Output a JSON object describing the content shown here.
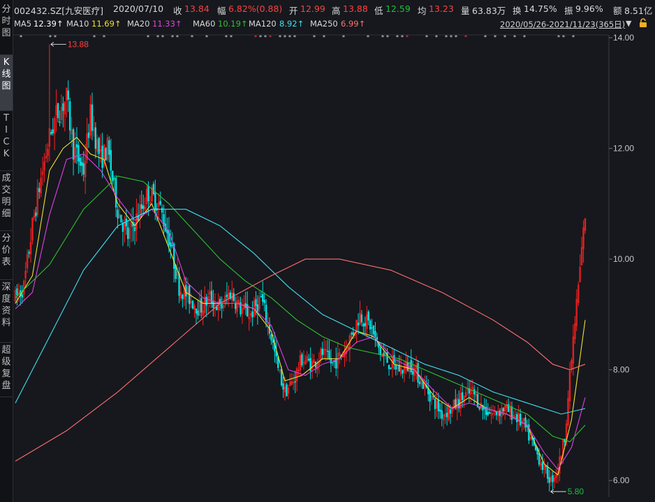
{
  "tabs": [
    {
      "label": "分时图",
      "active": false
    },
    {
      "label": "K线图",
      "active": true
    },
    {
      "label": "TICK",
      "active": false
    },
    {
      "label": "成交明细",
      "active": false
    },
    {
      "label": "分价表",
      "active": false
    },
    {
      "label": "深度资料",
      "active": false
    },
    {
      "label": "超级复盘",
      "active": false
    }
  ],
  "header": {
    "symbol": "002432.SZ[九安医疗]",
    "date": "2020/07/10",
    "close_label": "收",
    "close": "13.84",
    "change_label": "幅",
    "change": "6.82%(0.88)",
    "open_label": "开",
    "open": "12.99",
    "high_label": "高",
    "high": "13.88",
    "low_label": "低",
    "low": "12.59",
    "avg_label": "均",
    "avg": "13.23",
    "volume_label": "量",
    "volume": "63.83万",
    "turnover_label": "换",
    "turnover": "14.75%",
    "amplitude_label": "振",
    "amplitude": "9.96%",
    "amount_label": "额",
    "amount": "8.51亿"
  },
  "ma_bar": [
    {
      "name": "MA5",
      "value": "12.39↑",
      "color": "#ffffff"
    },
    {
      "name": "MA10",
      "value": "11.69↑",
      "color": "#f0e030"
    },
    {
      "name": "MA20",
      "value": "11.33↑",
      "color": "#e040e0"
    },
    {
      "name": "MA60",
      "value": "10.19↑",
      "color": "#30c030"
    },
    {
      "name": "MA120",
      "value": "8.92↑",
      "color": "#40e0f0"
    },
    {
      "name": "MA250",
      "value": "6.99↑",
      "color": "#ff7070"
    }
  ],
  "date_range": "2020/05/26-2021/11/23(365日)",
  "icons": {
    "dropdown": "chevron-down-icon",
    "lock": "lock-icon"
  },
  "colors": {
    "up": "#ff2020",
    "down": "#00e0e0",
    "bg": "#16181d",
    "grid": "#3a3d44"
  },
  "chart_data": {
    "type": "candlestick",
    "title": "",
    "xlabel": "",
    "ylabel": "",
    "ylim": [
      5.7,
      14.05
    ],
    "yticks": [
      6.0,
      8.0,
      10.0,
      12.0,
      14.0
    ],
    "ytick_labels": [
      "6.00",
      "8.00",
      "10.00",
      "12.00",
      "14.00"
    ],
    "period_days": 365,
    "anchors": [
      [
        0,
        9.3
      ],
      [
        5,
        9.5
      ],
      [
        10,
        10.6
      ],
      [
        14,
        11.3
      ],
      [
        20,
        12.2
      ],
      [
        24,
        12.6
      ],
      [
        30,
        12.9
      ],
      [
        34,
        12.0
      ],
      [
        40,
        11.6
      ],
      [
        44,
        12.6
      ],
      [
        50,
        11.8
      ],
      [
        54,
        12.0
      ],
      [
        60,
        10.9
      ],
      [
        66,
        10.4
      ],
      [
        72,
        10.8
      ],
      [
        78,
        11.2
      ],
      [
        84,
        11.0
      ],
      [
        90,
        10.4
      ],
      [
        96,
        9.5
      ],
      [
        102,
        9.3
      ],
      [
        108,
        9.1
      ],
      [
        114,
        9.3
      ],
      [
        120,
        9.1
      ],
      [
        126,
        9.4
      ],
      [
        132,
        9.1
      ],
      [
        138,
        9.0
      ],
      [
        144,
        9.3
      ],
      [
        150,
        8.6
      ],
      [
        154,
        8.0
      ],
      [
        158,
        7.6
      ],
      [
        163,
        7.8
      ],
      [
        168,
        8.2
      ],
      [
        174,
        8.1
      ],
      [
        180,
        8.3
      ],
      [
        186,
        8.1
      ],
      [
        192,
        8.3
      ],
      [
        198,
        8.7
      ],
      [
        202,
        9.0
      ],
      [
        208,
        8.8
      ],
      [
        214,
        8.3
      ],
      [
        220,
        8.1
      ],
      [
        226,
        8.0
      ],
      [
        232,
        8.1
      ],
      [
        238,
        7.8
      ],
      [
        244,
        7.5
      ],
      [
        250,
        7.2
      ],
      [
        256,
        7.3
      ],
      [
        262,
        7.5
      ],
      [
        268,
        7.6
      ],
      [
        274,
        7.3
      ],
      [
        280,
        7.2
      ],
      [
        286,
        7.3
      ],
      [
        292,
        7.2
      ],
      [
        298,
        7.0
      ],
      [
        304,
        6.6
      ],
      [
        310,
        6.2
      ],
      [
        314,
        6.0
      ],
      [
        318,
        6.2
      ],
      [
        322,
        6.8
      ],
      [
        326,
        8.2
      ],
      [
        330,
        9.5
      ],
      [
        334,
        10.8
      ]
    ],
    "spikes": [
      {
        "index": 20,
        "high": 13.88
      },
      {
        "index": 313,
        "low": 5.8
      }
    ],
    "ma_lines": [
      {
        "name": "MA10",
        "color": "#f0e030",
        "points": [
          [
            0,
            9.2
          ],
          [
            10,
            9.7
          ],
          [
            20,
            11.6
          ],
          [
            28,
            12.0
          ],
          [
            36,
            12.2
          ],
          [
            44,
            11.9
          ],
          [
            52,
            11.8
          ],
          [
            60,
            11.0
          ],
          [
            70,
            10.6
          ],
          [
            80,
            11.0
          ],
          [
            90,
            10.2
          ],
          [
            100,
            9.4
          ],
          [
            110,
            9.2
          ],
          [
            120,
            9.2
          ],
          [
            130,
            9.2
          ],
          [
            140,
            9.1
          ],
          [
            150,
            8.7
          ],
          [
            158,
            7.8
          ],
          [
            168,
            7.9
          ],
          [
            180,
            8.2
          ],
          [
            190,
            8.2
          ],
          [
            200,
            8.7
          ],
          [
            210,
            8.6
          ],
          [
            222,
            8.1
          ],
          [
            234,
            8.0
          ],
          [
            246,
            7.5
          ],
          [
            256,
            7.3
          ],
          [
            266,
            7.5
          ],
          [
            276,
            7.3
          ],
          [
            288,
            7.2
          ],
          [
            300,
            7.0
          ],
          [
            310,
            6.3
          ],
          [
            318,
            6.1
          ],
          [
            326,
            7.1
          ],
          [
            334,
            8.9
          ]
        ]
      },
      {
        "name": "MA20",
        "color": "#e040e0",
        "points": [
          [
            0,
            9.1
          ],
          [
            10,
            9.4
          ],
          [
            20,
            10.8
          ],
          [
            30,
            11.8
          ],
          [
            40,
            11.9
          ],
          [
            50,
            11.6
          ],
          [
            60,
            11.1
          ],
          [
            70,
            10.7
          ],
          [
            80,
            10.9
          ],
          [
            90,
            10.5
          ],
          [
            100,
            9.6
          ],
          [
            110,
            9.3
          ],
          [
            120,
            9.2
          ],
          [
            130,
            9.2
          ],
          [
            140,
            9.1
          ],
          [
            150,
            8.8
          ],
          [
            160,
            8.0
          ],
          [
            170,
            7.9
          ],
          [
            180,
            8.1
          ],
          [
            190,
            8.2
          ],
          [
            200,
            8.5
          ],
          [
            210,
            8.6
          ],
          [
            222,
            8.2
          ],
          [
            234,
            8.0
          ],
          [
            246,
            7.6
          ],
          [
            256,
            7.3
          ],
          [
            266,
            7.4
          ],
          [
            276,
            7.3
          ],
          [
            288,
            7.2
          ],
          [
            300,
            7.0
          ],
          [
            310,
            6.5
          ],
          [
            318,
            6.2
          ],
          [
            326,
            6.6
          ],
          [
            334,
            7.5
          ]
        ]
      },
      {
        "name": "MA60",
        "color": "#30c030",
        "points": [
          [
            0,
            9.3
          ],
          [
            20,
            9.9
          ],
          [
            40,
            10.9
          ],
          [
            60,
            11.5
          ],
          [
            75,
            11.4
          ],
          [
            90,
            11.0
          ],
          [
            105,
            10.5
          ],
          [
            120,
            10.0
          ],
          [
            135,
            9.6
          ],
          [
            150,
            9.3
          ],
          [
            165,
            8.9
          ],
          [
            180,
            8.6
          ],
          [
            195,
            8.4
          ],
          [
            210,
            8.3
          ],
          [
            225,
            8.2
          ],
          [
            240,
            8.0
          ],
          [
            255,
            7.8
          ],
          [
            270,
            7.6
          ],
          [
            285,
            7.4
          ],
          [
            300,
            7.2
          ],
          [
            315,
            6.8
          ],
          [
            325,
            6.7
          ],
          [
            334,
            7.0
          ]
        ]
      },
      {
        "name": "MA120",
        "color": "#40e0f0",
        "points": [
          [
            0,
            7.4
          ],
          [
            20,
            8.6
          ],
          [
            40,
            9.8
          ],
          [
            60,
            10.6
          ],
          [
            80,
            10.9
          ],
          [
            100,
            10.9
          ],
          [
            120,
            10.6
          ],
          [
            140,
            10.1
          ],
          [
            160,
            9.5
          ],
          [
            180,
            9.0
          ],
          [
            200,
            8.7
          ],
          [
            220,
            8.4
          ],
          [
            240,
            8.1
          ],
          [
            260,
            7.9
          ],
          [
            280,
            7.6
          ],
          [
            300,
            7.4
          ],
          [
            320,
            7.2
          ],
          [
            334,
            7.3
          ]
        ]
      },
      {
        "name": "MA250",
        "color": "#ff7070",
        "points": [
          [
            0,
            6.35
          ],
          [
            30,
            6.9
          ],
          [
            60,
            7.6
          ],
          [
            90,
            8.4
          ],
          [
            120,
            9.2
          ],
          [
            150,
            9.7
          ],
          [
            170,
            10.0
          ],
          [
            190,
            10.0
          ],
          [
            220,
            9.8
          ],
          [
            250,
            9.4
          ],
          [
            280,
            8.9
          ],
          [
            300,
            8.5
          ],
          [
            315,
            8.1
          ],
          [
            325,
            8.0
          ],
          [
            334,
            8.1
          ]
        ]
      }
    ],
    "annotations": [
      {
        "text": "13.88",
        "index": 20,
        "value": 13.88
      },
      {
        "text": "5.80",
        "index": 313,
        "value": 5.8
      }
    ]
  }
}
